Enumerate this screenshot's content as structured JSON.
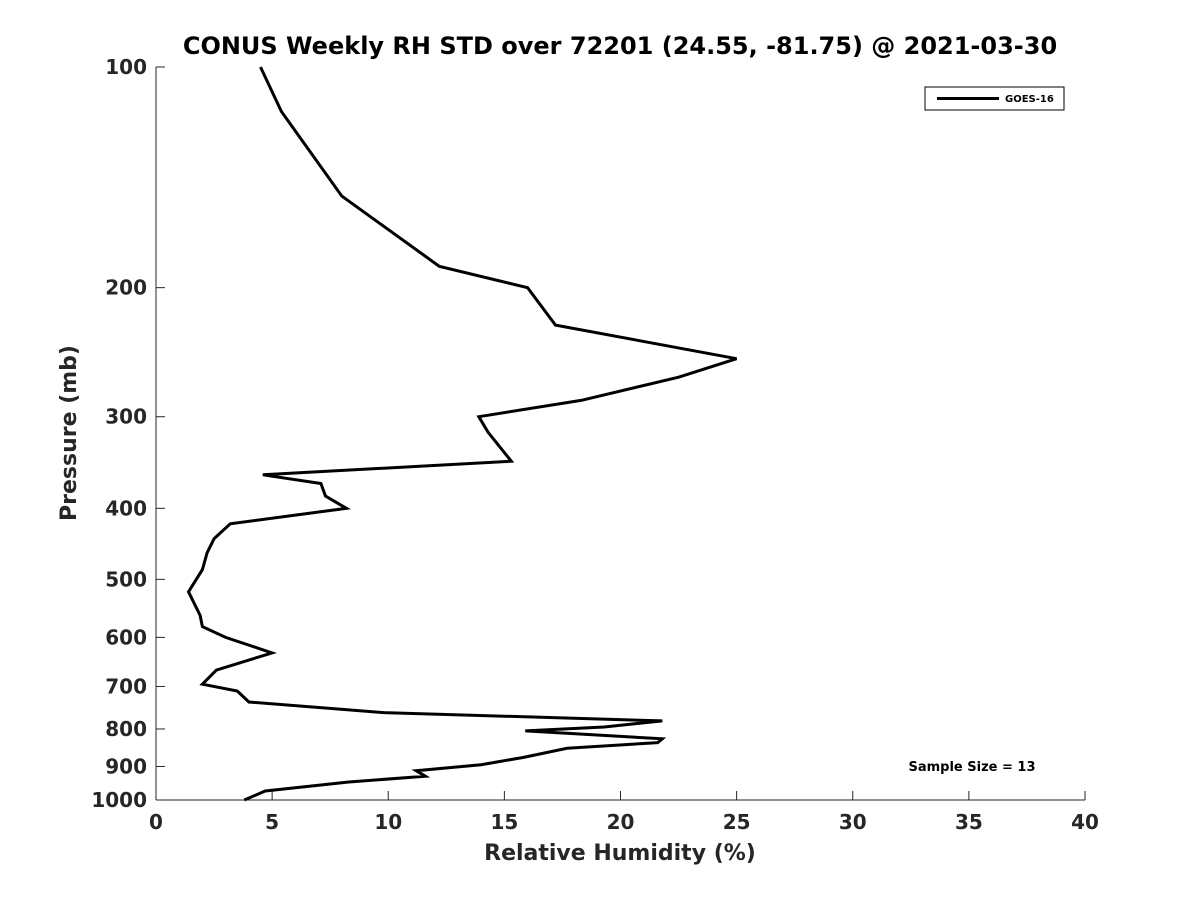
{
  "chart_data": {
    "type": "line",
    "title": "CONUS Weekly RH STD over 72201 (24.55, -81.75) @ 2021-03-30",
    "xlabel": "Relative Humidity (%)",
    "ylabel": "Pressure (mb)",
    "xlim": [
      0,
      40
    ],
    "ylim": [
      100,
      1000
    ],
    "y_scale": "log",
    "y_reversed": true,
    "grid": false,
    "legend_position": "top-right",
    "x_ticks": [
      0,
      5,
      10,
      15,
      20,
      25,
      30,
      35,
      40
    ],
    "x_tick_labels": [
      "0",
      "5",
      "10",
      "15",
      "20",
      "25",
      "30",
      "35",
      "40"
    ],
    "y_ticks": [
      100,
      200,
      300,
      400,
      500,
      600,
      700,
      800,
      900,
      1000
    ],
    "y_tick_labels": [
      "100",
      "200",
      "300",
      "400",
      "500",
      "600",
      "700",
      "800",
      "900",
      "1000"
    ],
    "series": [
      {
        "name": "GOES-16",
        "color": "#000000",
        "points": [
          [
            4.5,
            100
          ],
          [
            5.4,
            115
          ],
          [
            8.0,
            150
          ],
          [
            12.2,
            187
          ],
          [
            16.0,
            200
          ],
          [
            17.2,
            225
          ],
          [
            25.0,
            250
          ],
          [
            22.5,
            265
          ],
          [
            18.3,
            285
          ],
          [
            13.9,
            300
          ],
          [
            14.3,
            315
          ],
          [
            15.3,
            345
          ],
          [
            4.6,
            360
          ],
          [
            7.1,
            370
          ],
          [
            7.3,
            385
          ],
          [
            8.2,
            400
          ],
          [
            3.2,
            420
          ],
          [
            2.5,
            440
          ],
          [
            2.2,
            460
          ],
          [
            2.0,
            485
          ],
          [
            1.4,
            520
          ],
          [
            1.9,
            560
          ],
          [
            2.0,
            580
          ],
          [
            3.0,
            600
          ],
          [
            5.0,
            630
          ],
          [
            3.6,
            650
          ],
          [
            2.6,
            665
          ],
          [
            2.0,
            695
          ],
          [
            3.5,
            710
          ],
          [
            4.0,
            735
          ],
          [
            9.8,
            760
          ],
          [
            21.8,
            780
          ],
          [
            19.3,
            795
          ],
          [
            15.9,
            805
          ],
          [
            21.8,
            825
          ],
          [
            21.6,
            835
          ],
          [
            17.7,
            850
          ],
          [
            15.8,
            875
          ],
          [
            14.0,
            895
          ],
          [
            11.2,
            912
          ],
          [
            11.6,
            928
          ],
          [
            8.3,
            945
          ],
          [
            4.7,
            972
          ],
          [
            3.8,
            1000
          ]
        ]
      }
    ],
    "annotations": [
      "Sample Size = 13"
    ]
  }
}
